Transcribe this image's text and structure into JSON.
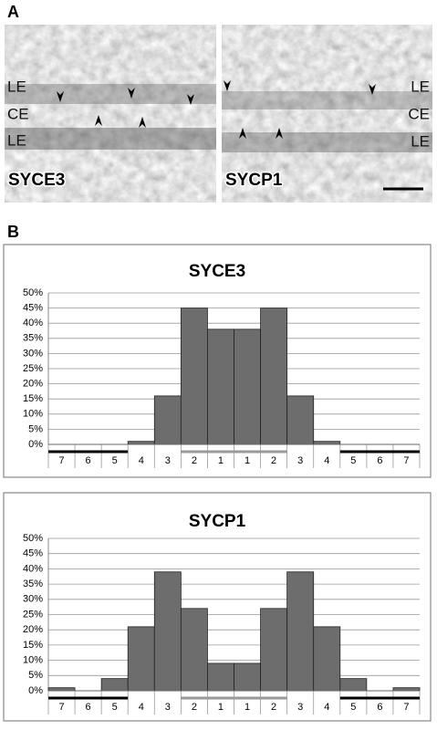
{
  "panels": {
    "a": "A",
    "b": "B"
  },
  "micrographs": [
    {
      "labels": [
        "LE",
        "CE",
        "LE"
      ],
      "name": "SYCE3"
    },
    {
      "labels": [
        "LE",
        "CE",
        "LE"
      ],
      "name": "SYCP1"
    }
  ],
  "chart_data": [
    {
      "type": "bar",
      "title": "SYCE3",
      "categories": [
        "7",
        "6",
        "5",
        "4",
        "3",
        "2",
        "1",
        "1",
        "2",
        "3",
        "4",
        "5",
        "6",
        "7"
      ],
      "values": [
        0,
        0,
        0,
        1,
        16,
        45,
        38,
        38,
        45,
        16,
        1,
        0,
        0,
        0
      ],
      "color": "#6d6d6d",
      "grid": true,
      "ylim": [
        0,
        50
      ],
      "yticks": [
        {
          "value": 0,
          "label": "0%"
        },
        {
          "value": 5,
          "label": "5%"
        },
        {
          "value": 10,
          "label": "10%"
        },
        {
          "value": 15,
          "label": "15%"
        },
        {
          "value": 20,
          "label": "20%"
        },
        {
          "value": 25,
          "label": "25%"
        },
        {
          "value": 30,
          "label": "30%"
        },
        {
          "value": 35,
          "label": "35%"
        },
        {
          "value": 40,
          "label": "40%"
        },
        {
          "value": 45,
          "label": "45%"
        },
        {
          "value": 50,
          "label": "50%"
        }
      ]
    },
    {
      "type": "bar",
      "title": "SYCP1",
      "categories": [
        "7",
        "6",
        "5",
        "4",
        "3",
        "2",
        "1",
        "1",
        "2",
        "3",
        "4",
        "5",
        "6",
        "7"
      ],
      "values": [
        1,
        0,
        4,
        21,
        39,
        27,
        9,
        9,
        27,
        39,
        21,
        4,
        0,
        1
      ],
      "color": "#6d6d6d",
      "grid": true,
      "ylim": [
        0,
        50
      ],
      "yticks": [
        {
          "value": 0,
          "label": "0%"
        },
        {
          "value": 5,
          "label": "5%"
        },
        {
          "value": 10,
          "label": "10%"
        },
        {
          "value": 15,
          "label": "15%"
        },
        {
          "value": 20,
          "label": "20%"
        },
        {
          "value": 25,
          "label": "25%"
        },
        {
          "value": 30,
          "label": "30%"
        },
        {
          "value": 35,
          "label": "35%"
        },
        {
          "value": 40,
          "label": "40%"
        },
        {
          "value": 45,
          "label": "45%"
        },
        {
          "value": 50,
          "label": "50%"
        }
      ]
    }
  ]
}
